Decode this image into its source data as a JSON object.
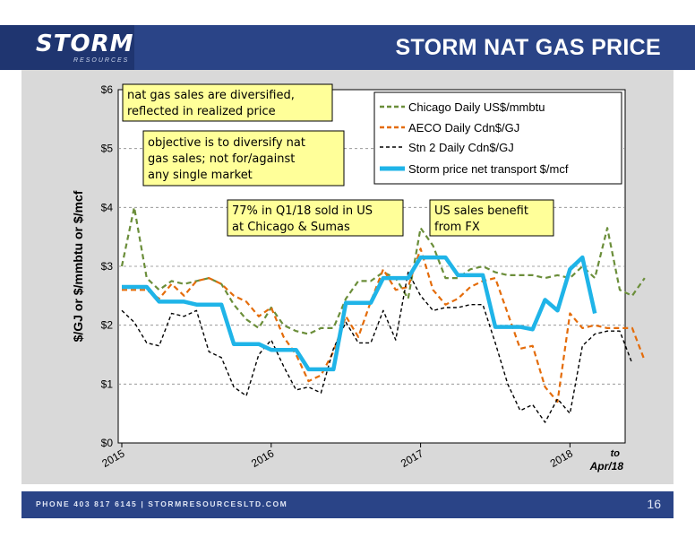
{
  "header": {
    "logo": "STORM",
    "logo_sub": "RESOURCES",
    "title": "STORM NAT GAS PRICE"
  },
  "footer": {
    "contact": "PHONE 403 817 6145   |   STORMRESOURCESLTD.COM",
    "page_number": "16"
  },
  "colors": {
    "header_blue": "#2a4487",
    "chicago": "#6b8e3a",
    "aeco": "#e46c0a",
    "stn2": "#000000",
    "storm": "#1fb4e8",
    "annotation_bg": "#ffff99"
  },
  "chart_data": {
    "type": "line",
    "ylabel": "$/GJ or $/mmbtu or $/mcf",
    "ylim": [
      0,
      6
    ],
    "yticks": [
      "$0",
      "$1",
      "$2",
      "$3",
      "$4",
      "$5",
      "$6"
    ],
    "xticks": [
      "2015",
      "2016",
      "2017",
      "2018"
    ],
    "xtick_extra": [
      "to",
      "Apr/18"
    ],
    "grid": true,
    "legend_position": "top-right",
    "series": [
      {
        "name": "Chicago Daily US$/mmbtu",
        "style": "dashed",
        "values": [
          3.0,
          4.0,
          2.8,
          2.6,
          2.75,
          2.7,
          2.75,
          2.8,
          2.7,
          2.35,
          2.1,
          1.95,
          2.3,
          2.0,
          1.9,
          1.85,
          1.95,
          1.95,
          2.45,
          2.75,
          2.75,
          2.9,
          2.8,
          2.45,
          3.65,
          3.35,
          2.8,
          2.8,
          2.95,
          3.0,
          2.9,
          2.85,
          2.85,
          2.85,
          2.8,
          2.85,
          2.8,
          3.0,
          2.8,
          3.65,
          2.6,
          2.5,
          2.8
        ]
      },
      {
        "name": "AECO Daily Cdn$/GJ",
        "style": "dashed",
        "values": [
          2.6,
          2.6,
          2.6,
          2.45,
          2.7,
          2.5,
          2.75,
          2.8,
          2.7,
          2.5,
          2.4,
          2.15,
          2.3,
          1.8,
          1.5,
          1.05,
          1.15,
          1.55,
          2.15,
          1.8,
          2.4,
          2.95,
          2.6,
          2.65,
          3.3,
          2.6,
          2.35,
          2.45,
          2.65,
          2.75,
          2.8,
          2.2,
          1.6,
          1.65,
          0.95,
          0.7,
          2.2,
          1.95,
          2.0,
          1.95,
          1.95,
          1.95,
          1.4
        ]
      },
      {
        "name": "Stn 2 Daily Cdn$/GJ",
        "style": "dashed",
        "values": [
          2.25,
          2.05,
          1.7,
          1.65,
          2.2,
          2.15,
          2.25,
          1.55,
          1.45,
          0.95,
          0.8,
          1.5,
          1.75,
          1.3,
          0.9,
          0.95,
          0.85,
          1.6,
          2.05,
          1.7,
          1.7,
          2.25,
          1.75,
          2.9,
          2.5,
          2.25,
          2.3,
          2.3,
          2.35,
          2.35,
          1.7,
          1.0,
          0.55,
          0.65,
          0.35,
          0.75,
          0.5,
          1.65,
          1.85,
          1.9,
          1.9,
          1.35
        ]
      },
      {
        "name": "Storm price net transport $/mcf",
        "style": "solid",
        "values": [
          2.65,
          2.65,
          2.65,
          2.4,
          2.4,
          2.4,
          2.35,
          2.35,
          2.35,
          1.68,
          1.68,
          1.68,
          1.58,
          1.58,
          1.58,
          1.25,
          1.25,
          1.25,
          2.38,
          2.38,
          2.38,
          2.8,
          2.8,
          2.8,
          3.15,
          3.15,
          3.15,
          2.85,
          2.85,
          2.85,
          1.97,
          1.97,
          1.97,
          1.93,
          2.43,
          2.25,
          2.95,
          3.15,
          2.2
        ]
      }
    ],
    "annotations": [
      "nat gas sales are diversified, reflected in realized price",
      "objective is to diversify nat gas sales; not for/against any single market",
      "77% in Q1/18 sold in US at Chicago & Sumas",
      "US sales benefit from FX"
    ]
  }
}
